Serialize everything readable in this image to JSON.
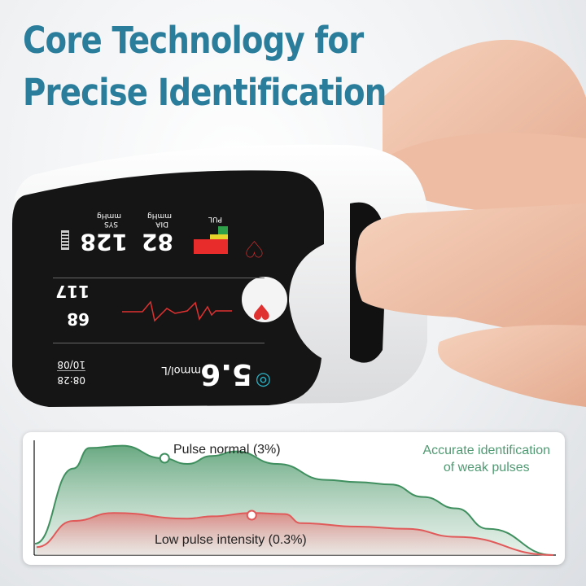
{
  "headline": {
    "line1": "Core Technology for",
    "line2": "Precise Identification"
  },
  "colors": {
    "title": "#2b7d9c",
    "normal_curve": "#3f8f5f",
    "low_curve": "#e05a5a",
    "note": "#4f9a72"
  },
  "device_screen": {
    "sys_label": "SYS",
    "sys_unit": "mmHg",
    "sys_value": "128",
    "dia_label": "DIA",
    "dia_unit": "mmHg",
    "dia_value": "82",
    "pul_label": "PUL",
    "pulse_value": "117",
    "spo2_value": "68",
    "glucose_value": "5.6",
    "glucose_unit": "mmol/L",
    "date": "10/08",
    "time": "08:28",
    "icons": [
      "battery-icon",
      "pulse-bar-icon",
      "heart-drop-icon",
      "heartbeat-icon",
      "glucose-drop-icon"
    ]
  },
  "chart_data": {
    "type": "area",
    "note": {
      "line1": "Accurate identification",
      "line2": "of weak pulses"
    },
    "series": [
      {
        "name": "Pulse normal (3%)",
        "points": [
          [
            0,
            10
          ],
          [
            7.4,
            76
          ],
          [
            10.5,
            94
          ],
          [
            16.8,
            96
          ],
          [
            24.6,
            85
          ],
          [
            29.4,
            80
          ],
          [
            34.1,
            87
          ],
          [
            38.8,
            91
          ],
          [
            46.7,
            80
          ],
          [
            56.1,
            66
          ],
          [
            62.3,
            64
          ],
          [
            68.6,
            62
          ],
          [
            74.9,
            51
          ],
          [
            81.2,
            41
          ],
          [
            87.4,
            23
          ],
          [
            100,
            0
          ]
        ],
        "marker": [
          25,
          85
        ]
      },
      {
        "name": "Low pulse intensity (0.3%)",
        "points": [
          [
            0.3,
            7
          ],
          [
            7.4,
            30
          ],
          [
            15.2,
            37
          ],
          [
            29.4,
            32
          ],
          [
            34.1,
            34
          ],
          [
            41.9,
            37
          ],
          [
            48.2,
            36
          ],
          [
            51.3,
            28
          ],
          [
            62.3,
            25
          ],
          [
            71.7,
            23
          ],
          [
            81.2,
            16
          ],
          [
            100,
            0
          ]
        ],
        "marker": [
          41.8,
          35
        ]
      }
    ]
  }
}
